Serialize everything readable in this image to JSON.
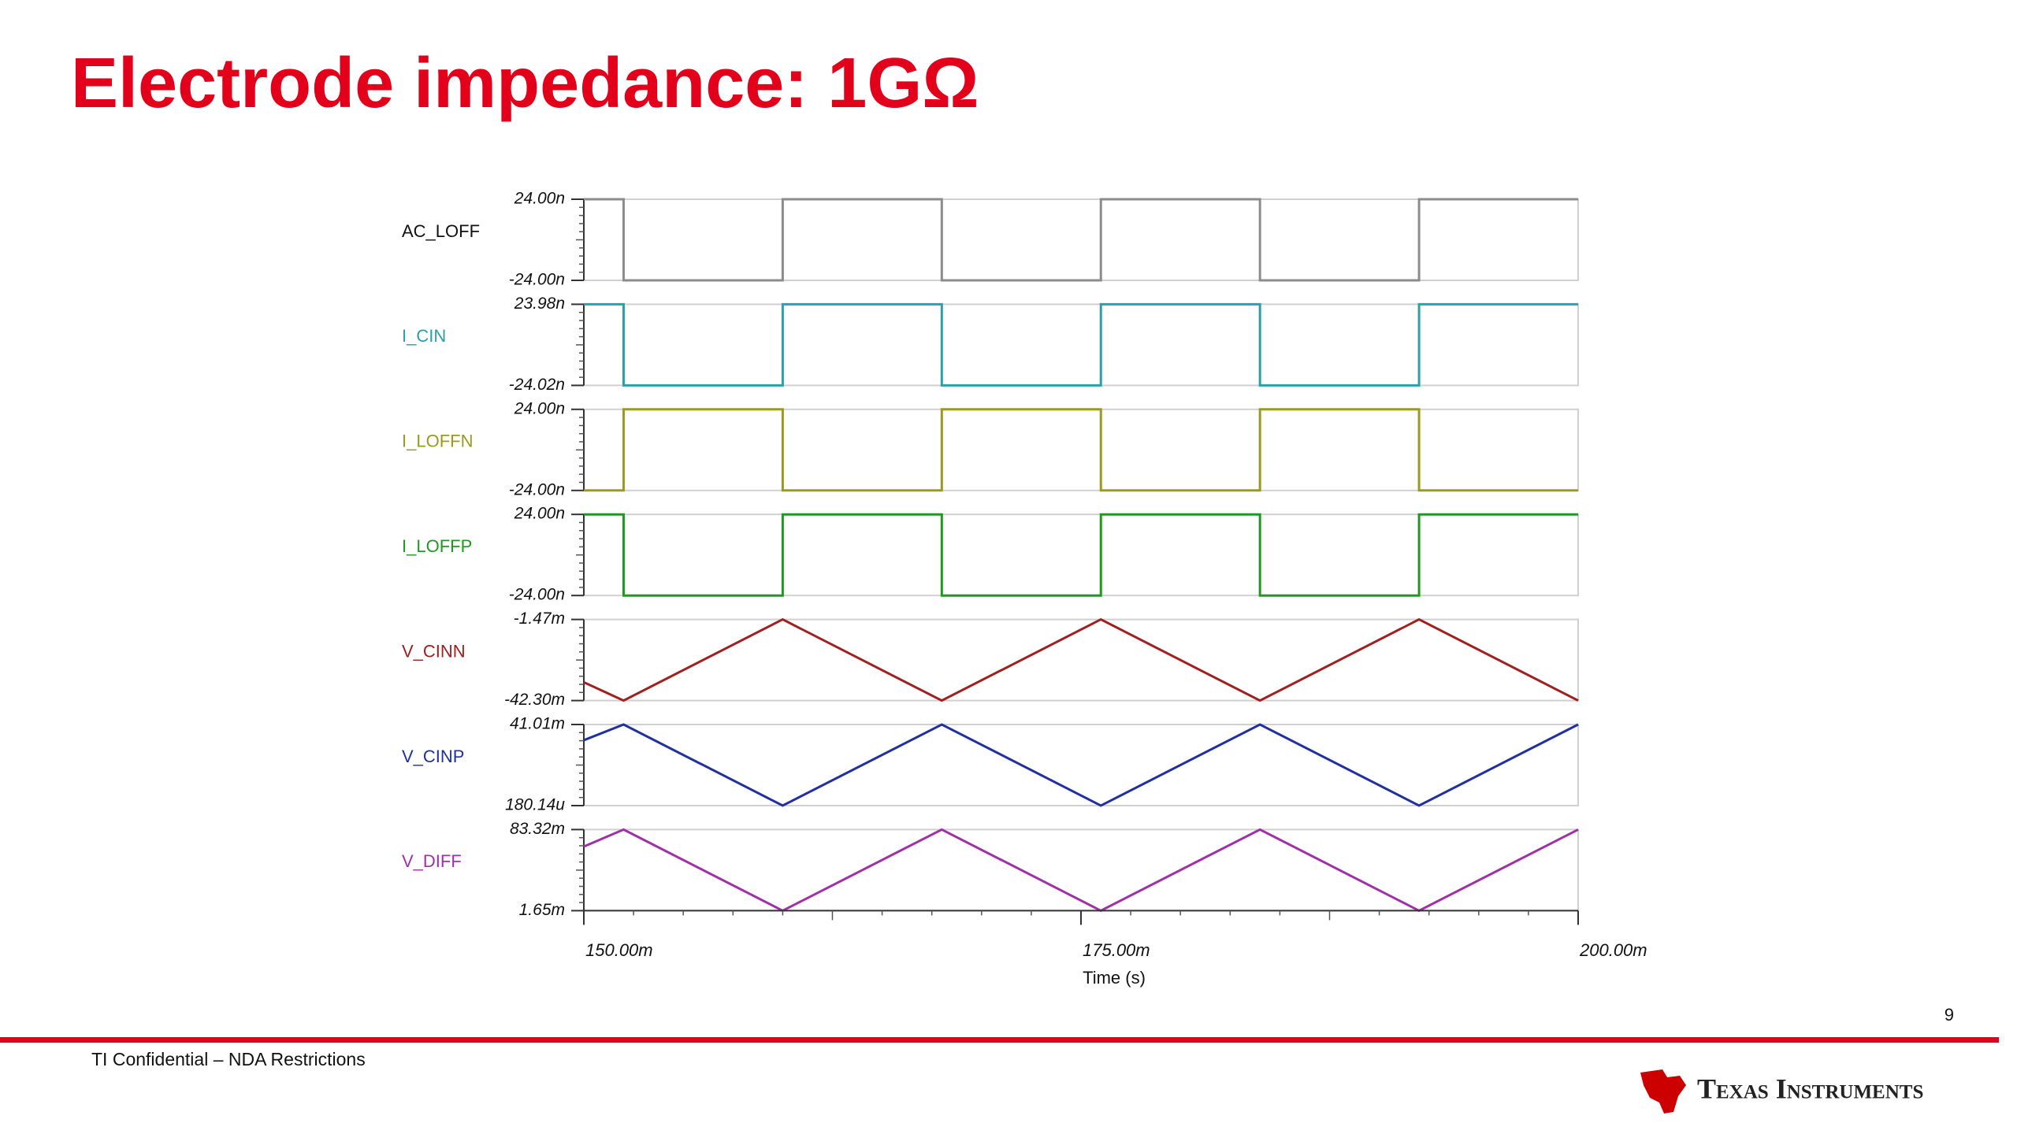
{
  "title": "Electrode impedance: 1GΩ",
  "page_number": "9",
  "footer": "TI Confidential – NDA Restrictions",
  "logo": "Texas Instruments",
  "chart_data": [
    {
      "type": "line",
      "ylabel": "AC_LOFF",
      "label_color": "#111111",
      "color": "#8c8c8c",
      "x": [
        0.15,
        0.152,
        0.152,
        0.16,
        0.16,
        0.168,
        0.168,
        0.176,
        0.176,
        0.184,
        0.184,
        0.192,
        0.192,
        0.2
      ],
      "values": [
        2.4e-08,
        2.4e-08,
        -2.4e-08,
        -2.4e-08,
        2.4e-08,
        2.4e-08,
        -2.4e-08,
        -2.4e-08,
        2.4e-08,
        2.4e-08,
        -2.4e-08,
        -2.4e-08,
        2.4e-08,
        2.4e-08
      ],
      "xlim": [
        0.15,
        0.2
      ],
      "ylim": [
        -2.4e-08,
        2.4e-08
      ],
      "yticks": [
        {
          "value": 2.4e-08,
          "label": "24.00n"
        },
        {
          "value": -2.4e-08,
          "label": "-24.00n"
        }
      ]
    },
    {
      "type": "line",
      "ylabel": "I_CIN",
      "label_color": "#2aa0a8",
      "color": "#2aa0a8",
      "x": [
        0.15,
        0.152,
        0.152,
        0.16,
        0.16,
        0.168,
        0.168,
        0.176,
        0.176,
        0.184,
        0.184,
        0.192,
        0.192,
        0.2
      ],
      "values": [
        2.398e-08,
        2.398e-08,
        -2.402e-08,
        -2.402e-08,
        2.398e-08,
        2.398e-08,
        -2.402e-08,
        -2.402e-08,
        2.398e-08,
        2.398e-08,
        -2.402e-08,
        -2.402e-08,
        2.398e-08,
        2.398e-08
      ],
      "xlim": [
        0.15,
        0.2
      ],
      "ylim": [
        -2.402e-08,
        2.398e-08
      ],
      "yticks": [
        {
          "value": 2.398e-08,
          "label": "23.98n"
        },
        {
          "value": -2.402e-08,
          "label": "-24.02n"
        }
      ]
    },
    {
      "type": "line",
      "ylabel": "I_LOFFN",
      "label_color": "#9a9a20",
      "color": "#9a9a20",
      "x": [
        0.15,
        0.152,
        0.152,
        0.16,
        0.16,
        0.168,
        0.168,
        0.176,
        0.176,
        0.184,
        0.184,
        0.192,
        0.192,
        0.2
      ],
      "values": [
        -2.4e-08,
        -2.4e-08,
        2.4e-08,
        2.4e-08,
        -2.4e-08,
        -2.4e-08,
        2.4e-08,
        2.4e-08,
        -2.4e-08,
        -2.4e-08,
        2.4e-08,
        2.4e-08,
        -2.4e-08,
        -2.4e-08
      ],
      "xlim": [
        0.15,
        0.2
      ],
      "ylim": [
        -2.4e-08,
        2.4e-08
      ],
      "yticks": [
        {
          "value": 2.4e-08,
          "label": "24.00n"
        },
        {
          "value": -2.4e-08,
          "label": "-24.00n"
        }
      ]
    },
    {
      "type": "line",
      "ylabel": "I_LOFFP",
      "label_color": "#1e9a1e",
      "color": "#1e9a1e",
      "x": [
        0.15,
        0.152,
        0.152,
        0.16,
        0.16,
        0.168,
        0.168,
        0.176,
        0.176,
        0.184,
        0.184,
        0.192,
        0.192,
        0.2
      ],
      "values": [
        2.4e-08,
        2.4e-08,
        -2.4e-08,
        -2.4e-08,
        2.4e-08,
        2.4e-08,
        -2.4e-08,
        -2.4e-08,
        2.4e-08,
        2.4e-08,
        -2.4e-08,
        -2.4e-08,
        2.4e-08,
        2.4e-08
      ],
      "xlim": [
        0.15,
        0.2
      ],
      "ylim": [
        -2.4e-08,
        2.4e-08
      ],
      "yticks": [
        {
          "value": 2.4e-08,
          "label": "24.00n"
        },
        {
          "value": -2.4e-08,
          "label": "-24.00n"
        }
      ]
    },
    {
      "type": "line",
      "ylabel": "V_CINN",
      "label_color": "#a02020",
      "color": "#a02020",
      "x": [
        0.15,
        0.152,
        0.16,
        0.168,
        0.176,
        0.184,
        0.192,
        0.2
      ],
      "values": [
        -0.0331,
        -0.0423,
        -0.00147,
        -0.0423,
        -0.00147,
        -0.0423,
        -0.00147,
        -0.0423
      ],
      "xlim": [
        0.15,
        0.2
      ],
      "ylim": [
        -0.0423,
        -0.00147
      ],
      "yticks": [
        {
          "value": -0.00147,
          "label": "-1.47m"
        },
        {
          "value": -0.0423,
          "label": "-42.30m"
        }
      ]
    },
    {
      "type": "line",
      "ylabel": "V_CINP",
      "label_color": "#2030a0",
      "color": "#2030a0",
      "x": [
        0.15,
        0.152,
        0.16,
        0.168,
        0.176,
        0.184,
        0.192,
        0.2
      ],
      "values": [
        0.0331,
        0.04101,
        0.00018014,
        0.04101,
        0.00018014,
        0.04101,
        0.00018014,
        0.04101
      ],
      "xlim": [
        0.15,
        0.2
      ],
      "ylim": [
        0.00018014,
        0.04101
      ],
      "yticks": [
        {
          "value": 0.04101,
          "label": "41.01m"
        },
        {
          "value": 0.00018014,
          "label": "180.14u"
        }
      ]
    },
    {
      "type": "line",
      "ylabel": "V_DIFF",
      "label_color": "#a030a8",
      "color": "#a030a8",
      "x": [
        0.15,
        0.152,
        0.16,
        0.168,
        0.176,
        0.184,
        0.192,
        0.2
      ],
      "values": [
        0.0662,
        0.08332,
        0.00165,
        0.08332,
        0.00165,
        0.08332,
        0.00165,
        0.08332
      ],
      "xlim": [
        0.15,
        0.2
      ],
      "ylim": [
        0.00165,
        0.08332
      ],
      "yticks": [
        {
          "value": 0.08332,
          "label": "83.32m"
        },
        {
          "value": 0.00165,
          "label": "1.65m"
        }
      ],
      "xticks": [
        {
          "value": 0.15,
          "label": "150.00m"
        },
        {
          "value": 0.175,
          "label": "175.00m"
        },
        {
          "value": 0.2,
          "label": "200.00m"
        }
      ],
      "xlabel": "Time (s)"
    }
  ]
}
